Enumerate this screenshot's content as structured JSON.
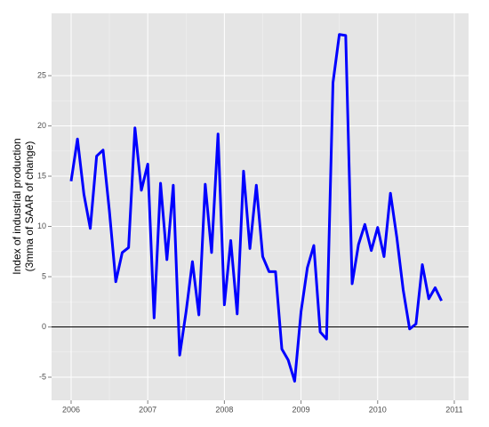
{
  "chart_data": {
    "type": "line",
    "ylabel": [
      "Index of industrial production",
      "(3mma of SAAR of change)"
    ],
    "x": [
      2006,
      2006.083,
      2006.167,
      2006.25,
      2006.333,
      2006.417,
      2006.5,
      2006.583,
      2006.667,
      2006.75,
      2006.833,
      2006.917,
      2007,
      2007.083,
      2007.167,
      2007.25,
      2007.333,
      2007.417,
      2007.5,
      2007.583,
      2007.667,
      2007.75,
      2007.833,
      2007.917,
      2008,
      2008.083,
      2008.167,
      2008.25,
      2008.333,
      2008.417,
      2008.5,
      2008.583,
      2008.667,
      2008.75,
      2008.833,
      2008.917,
      2009,
      2009.083,
      2009.167,
      2009.25,
      2009.333,
      2009.417,
      2009.5,
      2009.583,
      2009.667,
      2009.75,
      2009.833,
      2009.917,
      2010,
      2010.083,
      2010.167,
      2010.25,
      2010.333,
      2010.417,
      2010.5,
      2010.583,
      2010.667,
      2010.75,
      2010.833
    ],
    "series": [
      {
        "color": "#0000ff",
        "values": [
          14.5,
          18.7,
          13.2,
          9.8,
          17,
          17.6,
          11.5,
          4.5,
          7.4,
          7.9,
          19.8,
          13.6,
          16.2,
          0.9,
          14.3,
          6.7,
          14.1,
          -2.8,
          1.5,
          6.5,
          1.2,
          14.2,
          7.4,
          19.2,
          2.2,
          8.6,
          1.3,
          15.5,
          7.8,
          14.1,
          7,
          5.5,
          5.5,
          -2.2,
          -3.3,
          -5.4,
          1.5,
          5.9,
          8.1,
          -0.5,
          -1.2,
          24.3,
          29.1,
          29,
          4.3,
          8.2,
          10.2,
          7.6,
          9.9,
          7,
          13.3,
          8.9,
          3.7,
          -0.2,
          0.3,
          6.2,
          2.8,
          3.9,
          2.6
        ]
      }
    ],
    "xlim": [
      2005.745,
      2011.186
    ],
    "xticks": [
      2006,
      2007,
      2008,
      2009,
      2010,
      2011
    ],
    "ylim": [
      -7.3,
      31.2
    ],
    "yticks": [
      -5,
      0,
      5,
      10,
      15,
      20,
      25
    ],
    "hline": 0,
    "grid": true
  }
}
